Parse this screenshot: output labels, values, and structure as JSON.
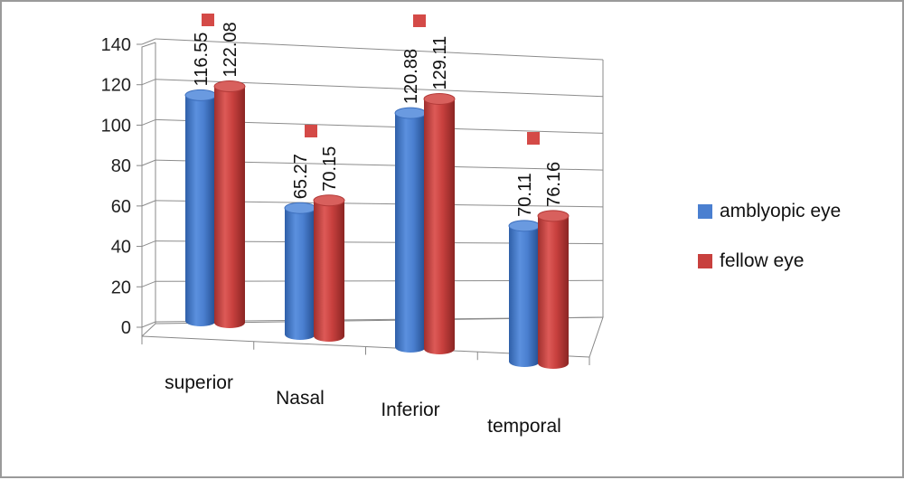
{
  "chart_data": {
    "type": "bar",
    "categories": [
      "superior",
      "Nasal",
      "Inferior",
      "temporal"
    ],
    "series": [
      {
        "name": "amblyopic eye",
        "values": [
          116.55,
          65.27,
          120.88,
          70.11
        ],
        "color": "#4a7fd0"
      },
      {
        "name": "fellow eye",
        "values": [
          122.08,
          70.15,
          129.11,
          76.16
        ],
        "color": "#c8403e"
      }
    ],
    "ylim": [
      0,
      140
    ],
    "yticks": [
      0,
      20,
      40,
      60,
      80,
      100,
      120,
      140
    ],
    "grid": true,
    "legend": "right",
    "markers": [
      {
        "series": "fellow eye",
        "category": "superior",
        "shape": "square",
        "color": "#d44a47"
      },
      {
        "series": "fellow eye",
        "category": "Nasal",
        "shape": "square",
        "color": "#d44a47"
      },
      {
        "series": "fellow eye",
        "category": "Inferior",
        "shape": "square",
        "color": "#d44a47"
      },
      {
        "series": "fellow eye",
        "category": "temporal",
        "shape": "square",
        "color": "#d44a47"
      }
    ],
    "style": "3d-cylinder"
  }
}
